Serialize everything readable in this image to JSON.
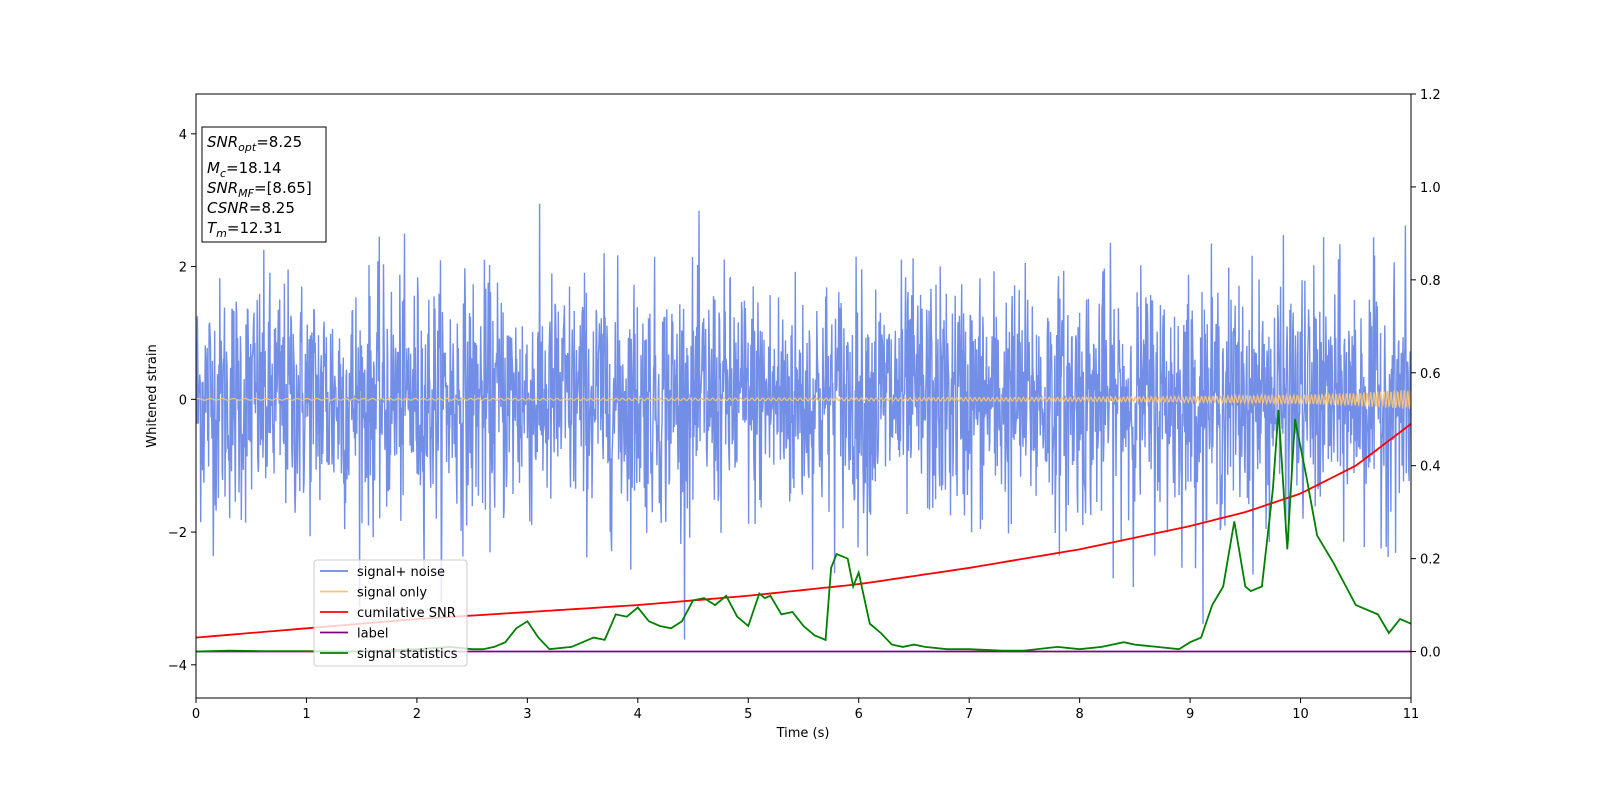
{
  "chart_data": {
    "type": "line",
    "xlabel": "Time (s)",
    "ylabel": "Whitened strain",
    "xlim": [
      0,
      11
    ],
    "ylim": [
      -4.5,
      4.6
    ],
    "y2lim": [
      -0.1,
      1.2
    ],
    "x_ticks": [
      "0",
      "1",
      "2",
      "3",
      "4",
      "5",
      "6",
      "7",
      "8",
      "9",
      "10",
      "11"
    ],
    "y_ticks": [
      "4",
      "2",
      "0",
      "−2",
      "−4"
    ],
    "y_tick_values": [
      4,
      2,
      0,
      -2,
      -4
    ],
    "y2_ticks": [
      "1.2",
      "1.0",
      "0.8",
      "0.6",
      "0.4",
      "0.2",
      "0.0"
    ],
    "y2_tick_values": [
      1.2,
      1.0,
      0.8,
      0.6,
      0.4,
      0.2,
      0.0
    ],
    "legend_position": "lower-left",
    "grid": false,
    "annotation": [
      {
        "main": "SNR",
        "sub": "opt",
        "rest": "=8.25"
      },
      {
        "main": "M",
        "sub": "c",
        "rest": "=18.14"
      },
      {
        "main": "SNR",
        "sub": "MF",
        "rest": "=[8.65]"
      },
      {
        "main": "CSNR",
        "sub": "",
        "rest": "=8.25"
      },
      {
        "main": "T",
        "sub": "m",
        "rest": "=12.31"
      }
    ],
    "series": [
      {
        "name": "signal+ noise",
        "color": "#6b88e6",
        "axis": "left",
        "kind": "noise",
        "amplitude_std": 0.9,
        "samples": 2600
      },
      {
        "name": "signal only",
        "color": "#f5c27a",
        "axis": "left",
        "kind": "chirp",
        "x": [
          0,
          2,
          4,
          6,
          8,
          9,
          10,
          10.5,
          11
        ],
        "amplitude": [
          0.012,
          0.014,
          0.017,
          0.022,
          0.032,
          0.045,
          0.07,
          0.1,
          0.15
        ]
      },
      {
        "name": "cumilative SNR",
        "color": "#ff0000",
        "axis": "right",
        "x": [
          0,
          1,
          2,
          3,
          4,
          5,
          6,
          7,
          8,
          9,
          9.5,
          10,
          10.5,
          11
        ],
        "y": [
          0.03,
          0.05,
          0.07,
          0.085,
          0.1,
          0.12,
          0.145,
          0.18,
          0.22,
          0.27,
          0.3,
          0.34,
          0.4,
          0.49
        ]
      },
      {
        "name": "label",
        "color": "#800080",
        "axis": "right",
        "x": [
          0,
          11
        ],
        "y": [
          0.0,
          0.0
        ]
      },
      {
        "name": "signal statistics",
        "color": "#008000",
        "axis": "right",
        "x": [
          0,
          0.3,
          0.6,
          1,
          1.5,
          2,
          2.3,
          2.5,
          2.6,
          2.7,
          2.8,
          2.9,
          3.0,
          3.1,
          3.2,
          3.4,
          3.6,
          3.7,
          3.8,
          3.9,
          4.0,
          4.1,
          4.2,
          4.3,
          4.4,
          4.5,
          4.6,
          4.7,
          4.8,
          4.9,
          5.0,
          5.1,
          5.15,
          5.2,
          5.3,
          5.4,
          5.5,
          5.6,
          5.7,
          5.75,
          5.8,
          5.9,
          5.95,
          6.0,
          6.1,
          6.2,
          6.3,
          6.4,
          6.5,
          6.6,
          6.8,
          7.0,
          7.3,
          7.5,
          7.8,
          8.0,
          8.2,
          8.4,
          8.5,
          8.7,
          8.9,
          9.0,
          9.1,
          9.2,
          9.3,
          9.4,
          9.5,
          9.55,
          9.65,
          9.75,
          9.8,
          9.88,
          9.95,
          10.05,
          10.15,
          10.3,
          10.5,
          10.7,
          10.8,
          10.9,
          11.0
        ],
        "y": [
          0.0,
          0.002,
          0.001,
          0.001,
          0.0,
          0.005,
          0.01,
          0.005,
          0.005,
          0.01,
          0.02,
          0.05,
          0.065,
          0.03,
          0.005,
          0.01,
          0.03,
          0.025,
          0.08,
          0.075,
          0.095,
          0.065,
          0.055,
          0.05,
          0.065,
          0.11,
          0.115,
          0.1,
          0.12,
          0.075,
          0.055,
          0.125,
          0.115,
          0.12,
          0.08,
          0.085,
          0.055,
          0.035,
          0.025,
          0.18,
          0.21,
          0.2,
          0.14,
          0.17,
          0.06,
          0.04,
          0.015,
          0.01,
          0.015,
          0.01,
          0.005,
          0.005,
          0.002,
          0.002,
          0.01,
          0.005,
          0.01,
          0.02,
          0.015,
          0.01,
          0.005,
          0.02,
          0.03,
          0.1,
          0.14,
          0.28,
          0.14,
          0.13,
          0.14,
          0.35,
          0.52,
          0.22,
          0.5,
          0.38,
          0.25,
          0.19,
          0.1,
          0.08,
          0.04,
          0.07,
          0.06
        ]
      }
    ]
  }
}
